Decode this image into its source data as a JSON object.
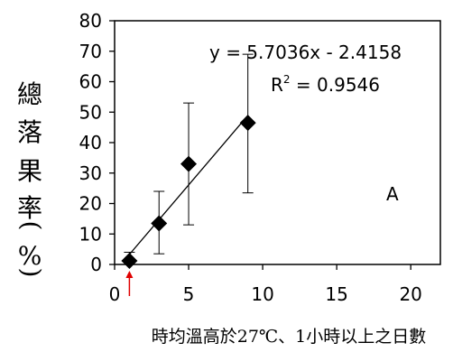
{
  "chart_data": {
    "type": "scatter",
    "title": "",
    "xlabel": "時均溫高於27℃、1小時以上之日數",
    "ylabel": "總落果率(%)",
    "ylabel_chars": [
      "總",
      "落",
      "果",
      "率",
      "(",
      "%",
      ")"
    ],
    "xlim": [
      0,
      22
    ],
    "ylim": [
      0,
      80
    ],
    "x_ticks": [
      0,
      5,
      10,
      15,
      20
    ],
    "y_ticks": [
      0,
      10,
      20,
      30,
      40,
      50,
      60,
      70,
      80
    ],
    "grid": false,
    "points": [
      {
        "x": 1,
        "y": 1.2,
        "err_low": 0.8,
        "err_high": 4.0
      },
      {
        "x": 3,
        "y": 13.5,
        "err_low": 3.5,
        "err_high": 24.0
      },
      {
        "x": 5,
        "y": 33.0,
        "err_low": 13.0,
        "err_high": 53.0
      },
      {
        "x": 9,
        "y": 46.5,
        "err_low": 23.5,
        "err_high": 69.0
      }
    ],
    "trendline": {
      "slope": 5.7036,
      "intercept": -2.4158,
      "x_range": [
        0.8,
        9
      ]
    },
    "equation_text": "y = 5.7036x - 2.4158",
    "r2_prefix": "R",
    "r2_sup": "2",
    "r2_suffix": " = 0.9546",
    "panel_label": "A",
    "arrow_x": 1,
    "colors": {
      "marker": "#000000",
      "arrow": "#e00000",
      "axis": "#000000"
    }
  }
}
